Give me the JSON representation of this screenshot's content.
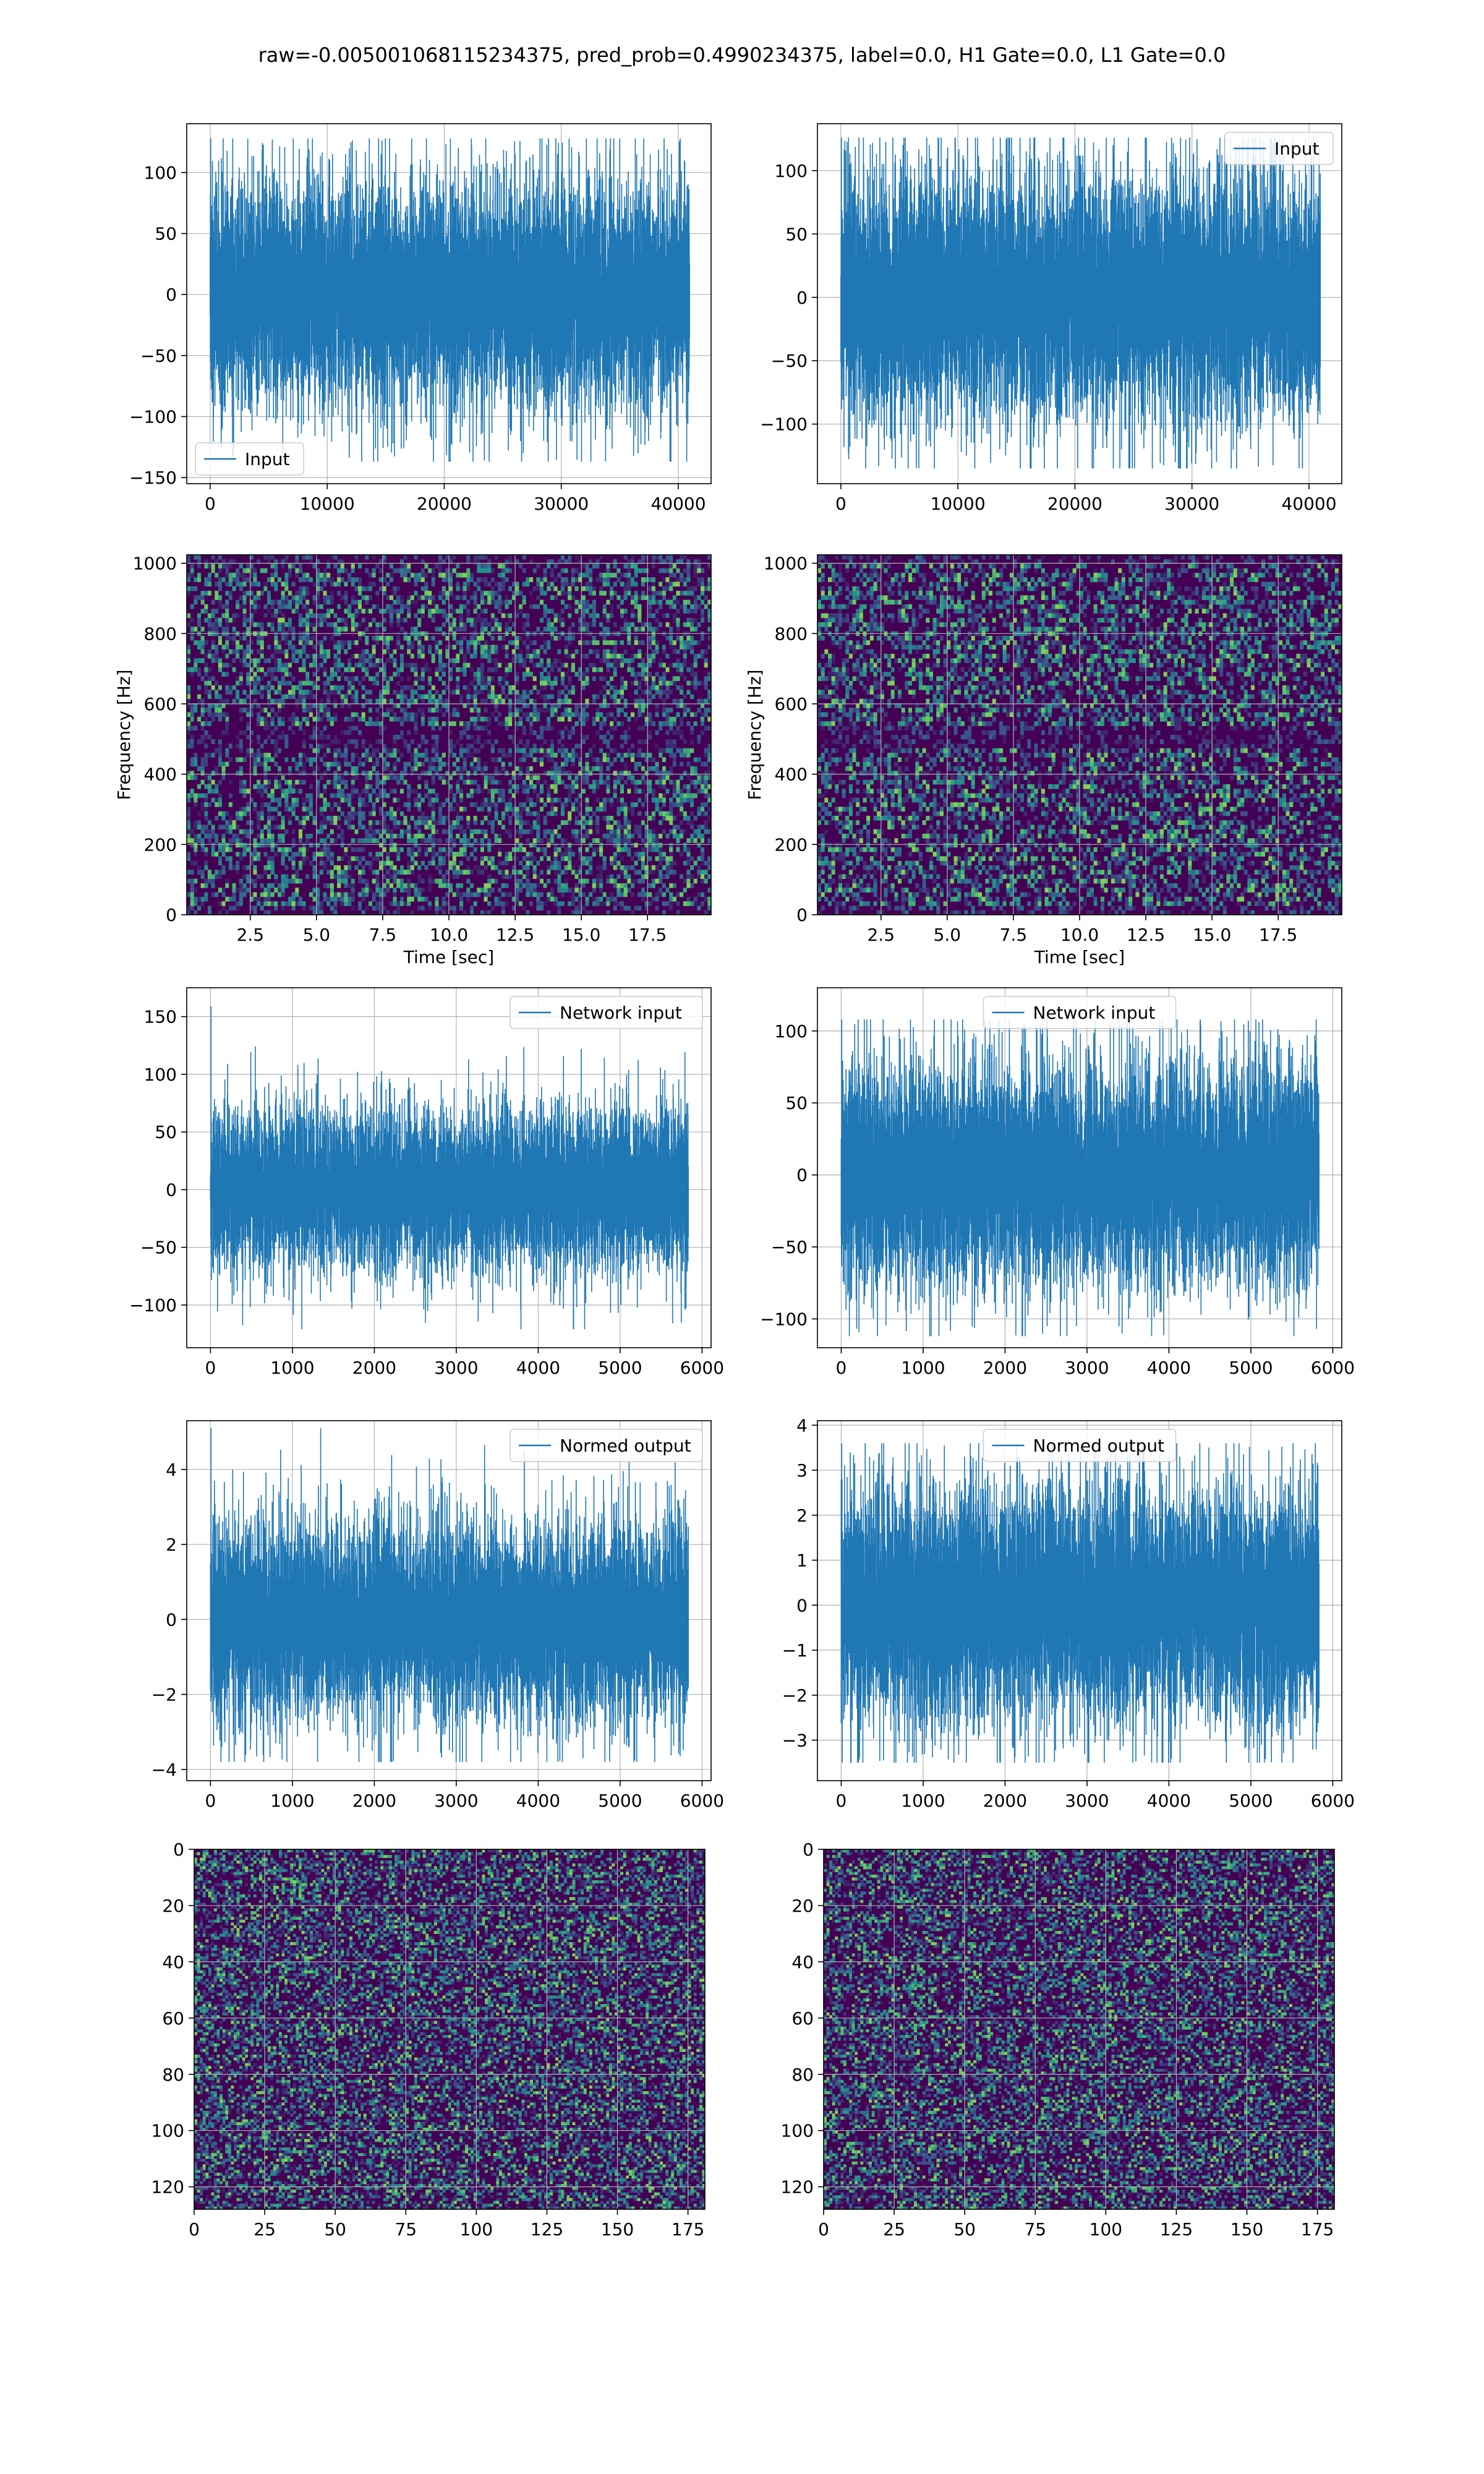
{
  "figure": {
    "suptitle": "raw=-0.005001068115234375, pred_prob=0.4990234375, label=0.0, H1 Gate=0.0, L1 Gate=0.0"
  },
  "colors": {
    "line": "#1f77b4",
    "grid": "#b0b0b0",
    "viridis_dark": "#440154",
    "viridis_mid": "#2a6f8e",
    "viridis_bright": "#fde725"
  },
  "chart_data": [
    {
      "id": "h1-input",
      "type": "line",
      "render": "noise",
      "legend": [
        "Input"
      ],
      "legend_loc": "lower left",
      "xlim": [
        -2000,
        42800
      ],
      "ylim": [
        -155,
        140
      ],
      "xticks": [
        0,
        10000,
        20000,
        30000,
        40000
      ],
      "yticks": [
        -150,
        -100,
        -50,
        0,
        50,
        100
      ],
      "n_samples": 40960,
      "band": {
        "mean_abs": 66,
        "max": 128,
        "min": -137
      }
    },
    {
      "id": "l1-input",
      "type": "line",
      "render": "noise",
      "legend": [
        "Input"
      ],
      "legend_loc": "upper right",
      "xlim": [
        -2000,
        42800
      ],
      "ylim": [
        -147,
        137
      ],
      "xticks": [
        0,
        10000,
        20000,
        30000,
        40000
      ],
      "yticks": [
        -100,
        -50,
        0,
        50,
        100
      ],
      "n_samples": 40960,
      "band": {
        "mean_abs": 70,
        "max": 126,
        "min": -135
      }
    },
    {
      "id": "h1-spectrogram",
      "type": "heatmap",
      "render": "spectrogram",
      "xlabel": "Time [sec]",
      "ylabel": "Frequency [Hz]",
      "xlim": [
        0.1,
        19.9
      ],
      "ylim": [
        0,
        1024
      ],
      "xticks": [
        "2.5",
        "5.0",
        "7.5",
        "10.0",
        "12.5",
        "15.0",
        "17.5"
      ],
      "xtick_values": [
        2.5,
        5.0,
        7.5,
        10.0,
        12.5,
        15.0,
        17.5
      ],
      "yticks": [
        0,
        200,
        400,
        600,
        800,
        1000
      ],
      "colormap": "viridis"
    },
    {
      "id": "l1-spectrogram",
      "type": "heatmap",
      "render": "spectrogram",
      "xlabel": "Time [sec]",
      "ylabel": "Frequency [Hz]",
      "xlim": [
        0.1,
        19.9
      ],
      "ylim": [
        0,
        1024
      ],
      "xticks": [
        "2.5",
        "5.0",
        "7.5",
        "10.0",
        "12.5",
        "15.0",
        "17.5"
      ],
      "xtick_values": [
        2.5,
        5.0,
        7.5,
        10.0,
        12.5,
        15.0,
        17.5
      ],
      "yticks": [
        0,
        200,
        400,
        600,
        800,
        1000
      ],
      "colormap": "viridis"
    },
    {
      "id": "h1-network-input",
      "type": "line",
      "render": "noise",
      "legend": [
        "Network input"
      ],
      "legend_loc": "upper right",
      "xlim": [
        -290,
        6110
      ],
      "ylim": [
        -137,
        175
      ],
      "xticks": [
        0,
        1000,
        2000,
        3000,
        4000,
        5000,
        6000
      ],
      "yticks": [
        -100,
        -50,
        0,
        50,
        100,
        150
      ],
      "n_samples": 5832,
      "band": {
        "mean_abs": 50,
        "max": 159,
        "min": -121
      }
    },
    {
      "id": "l1-network-input",
      "type": "line",
      "render": "noise",
      "legend": [
        "Network input"
      ],
      "legend_loc": "upper center",
      "xlim": [
        -290,
        6110
      ],
      "ylim": [
        -120,
        130
      ],
      "xticks": [
        0,
        1000,
        2000,
        3000,
        4000,
        5000,
        6000
      ],
      "yticks": [
        -100,
        -50,
        0,
        50,
        100
      ],
      "n_samples": 5832,
      "band": {
        "mean_abs": 55,
        "max": 108,
        "min": -112
      }
    },
    {
      "id": "h1-normed-output",
      "type": "line",
      "render": "noise",
      "legend": [
        "Normed output"
      ],
      "legend_loc": "upper right",
      "xlim": [
        -290,
        6110
      ],
      "ylim": [
        -4.3,
        5.3
      ],
      "xticks": [
        0,
        1000,
        2000,
        3000,
        4000,
        5000,
        6000
      ],
      "yticks": [
        -4,
        -2,
        0,
        2,
        4
      ],
      "n_samples": 5832,
      "band": {
        "mean_abs": 1.9,
        "max": 5.1,
        "min": -3.8
      }
    },
    {
      "id": "l1-normed-output",
      "type": "line",
      "render": "noise",
      "legend": [
        "Normed output"
      ],
      "legend_loc": "upper center",
      "xlim": [
        -290,
        6110
      ],
      "ylim": [
        -3.9,
        4.1
      ],
      "xticks": [
        0,
        1000,
        2000,
        3000,
        4000,
        5000,
        6000
      ],
      "yticks": [
        -3,
        -2,
        -1,
        0,
        1,
        2,
        3,
        4
      ],
      "n_samples": 5832,
      "band": {
        "mean_abs": 1.85,
        "max": 3.6,
        "min": -3.5
      }
    },
    {
      "id": "h1-image",
      "type": "heatmap",
      "render": "matrix",
      "xlim": [
        0,
        181
      ],
      "ylim": [
        128,
        0
      ],
      "xticks": [
        0,
        25,
        50,
        75,
        100,
        125,
        150,
        175
      ],
      "yticks": [
        0,
        20,
        40,
        60,
        80,
        100,
        120
      ],
      "shape": [
        128,
        181
      ],
      "colormap": "viridis"
    },
    {
      "id": "l1-image",
      "type": "heatmap",
      "render": "matrix",
      "xlim": [
        0,
        181
      ],
      "ylim": [
        128,
        0
      ],
      "xticks": [
        0,
        25,
        50,
        75,
        100,
        125,
        150,
        175
      ],
      "yticks": [
        0,
        20,
        40,
        60,
        80,
        100,
        120
      ],
      "shape": [
        128,
        181
      ],
      "colormap": "viridis"
    }
  ]
}
